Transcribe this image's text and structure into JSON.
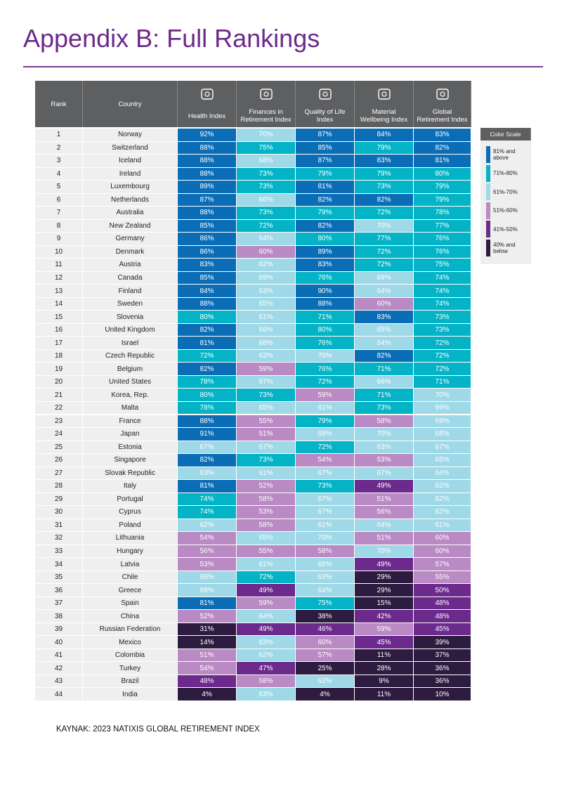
{
  "header": {
    "title": "Appendix B: Full Rankings"
  },
  "table": {
    "columns": [
      "Rank",
      "Country",
      "Health Index",
      "Finances in Retirement Index",
      "Quality of Life Index",
      "Material Wellbeing Index",
      "Global Retirement Index"
    ],
    "rows": [
      [
        "1",
        "Norway",
        "92%",
        "70%",
        "87%",
        "84%",
        "83%"
      ],
      [
        "2",
        "Switzerland",
        "88%",
        "75%",
        "85%",
        "79%",
        "82%"
      ],
      [
        "3",
        "Iceland",
        "88%",
        "68%",
        "87%",
        "83%",
        "81%"
      ],
      [
        "4",
        "Ireland",
        "88%",
        "73%",
        "79%",
        "79%",
        "80%"
      ],
      [
        "5",
        "Luxembourg",
        "89%",
        "73%",
        "81%",
        "73%",
        "79%"
      ],
      [
        "6",
        "Netherlands",
        "87%",
        "66%",
        "82%",
        "82%",
        "79%"
      ],
      [
        "7",
        "Australia",
        "88%",
        "73%",
        "79%",
        "72%",
        "78%"
      ],
      [
        "8",
        "New Zealand",
        "85%",
        "72%",
        "82%",
        "70%",
        "77%"
      ],
      [
        "9",
        "Germany",
        "86%",
        "64%",
        "80%",
        "77%",
        "76%"
      ],
      [
        "10",
        "Denmark",
        "86%",
        "60%",
        "89%",
        "72%",
        "76%"
      ],
      [
        "11",
        "Austria",
        "83%",
        "62%",
        "83%",
        "72%",
        "75%"
      ],
      [
        "12",
        "Canada",
        "85%",
        "69%",
        "76%",
        "69%",
        "74%"
      ],
      [
        "13",
        "Finland",
        "84%",
        "63%",
        "90%",
        "64%",
        "74%"
      ],
      [
        "14",
        "Sweden",
        "88%",
        "65%",
        "88%",
        "60%",
        "74%"
      ],
      [
        "15",
        "Slovenia",
        "80%",
        "61%",
        "71%",
        "83%",
        "73%"
      ],
      [
        "16",
        "United Kingdom",
        "82%",
        "66%",
        "80%",
        "65%",
        "73%"
      ],
      [
        "17",
        "Israel",
        "81%",
        "68%",
        "76%",
        "64%",
        "72%"
      ],
      [
        "18",
        "Czech Republic",
        "72%",
        "63%",
        "70%",
        "82%",
        "72%"
      ],
      [
        "19",
        "Belgium",
        "82%",
        "59%",
        "76%",
        "71%",
        "72%"
      ],
      [
        "20",
        "United States",
        "78%",
        "67%",
        "72%",
        "66%",
        "71%"
      ],
      [
        "21",
        "Korea, Rep.",
        "80%",
        "73%",
        "59%",
        "71%",
        "70%"
      ],
      [
        "22",
        "Malta",
        "78%",
        "65%",
        "61%",
        "73%",
        "69%"
      ],
      [
        "23",
        "France",
        "88%",
        "55%",
        "79%",
        "58%",
        "69%"
      ],
      [
        "24",
        "Japan",
        "91%",
        "51%",
        "69%",
        "70%",
        "68%"
      ],
      [
        "25",
        "Estonia",
        "67%",
        "67%",
        "72%",
        "63%",
        "67%"
      ],
      [
        "26",
        "Singapore",
        "82%",
        "73%",
        "54%",
        "53%",
        "65%"
      ],
      [
        "27",
        "Slovak Republic",
        "63%",
        "61%",
        "67%",
        "67%",
        "64%"
      ],
      [
        "28",
        "Italy",
        "81%",
        "52%",
        "73%",
        "49%",
        "62%"
      ],
      [
        "29",
        "Portugal",
        "74%",
        "58%",
        "67%",
        "51%",
        "62%"
      ],
      [
        "30",
        "Cyprus",
        "74%",
        "53%",
        "67%",
        "56%",
        "62%"
      ],
      [
        "31",
        "Poland",
        "62%",
        "58%",
        "61%",
        "64%",
        "61%"
      ],
      [
        "32",
        "Lithuania",
        "54%",
        "65%",
        "70%",
        "51%",
        "60%"
      ],
      [
        "33",
        "Hungary",
        "56%",
        "55%",
        "58%",
        "70%",
        "60%"
      ],
      [
        "34",
        "Latvia",
        "53%",
        "61%",
        "65%",
        "49%",
        "57%"
      ],
      [
        "35",
        "Chile",
        "66%",
        "72%",
        "63%",
        "29%",
        "55%"
      ],
      [
        "36",
        "Greece",
        "69%",
        "49%",
        "64%",
        "29%",
        "50%"
      ],
      [
        "37",
        "Spain",
        "81%",
        "59%",
        "75%",
        "15%",
        "48%"
      ],
      [
        "38",
        "China",
        "52%",
        "64%",
        "38%",
        "42%",
        "48%"
      ],
      [
        "39",
        "Russian Federation",
        "31%",
        "49%",
        "46%",
        "59%",
        "45%"
      ],
      [
        "40",
        "Mexico",
        "14%",
        "63%",
        "60%",
        "45%",
        "39%"
      ],
      [
        "41",
        "Colombia",
        "51%",
        "62%",
        "57%",
        "11%",
        "37%"
      ],
      [
        "42",
        "Turkey",
        "54%",
        "47%",
        "25%",
        "28%",
        "36%"
      ],
      [
        "43",
        "Brazil",
        "48%",
        "58%",
        "62%",
        "9%",
        "36%"
      ],
      [
        "44",
        "India",
        "4%",
        "63%",
        "4%",
        "11%",
        "10%"
      ]
    ]
  },
  "color_scale": {
    "title": "Color Scale",
    "items": [
      {
        "label": "81% and above",
        "color": "#0b6db5"
      },
      {
        "label": "71%-80%",
        "color": "#05b3c6"
      },
      {
        "label": "61%-70%",
        "color": "#9fd8e7"
      },
      {
        "label": "51%-60%",
        "color": "#b98ac3"
      },
      {
        "label": "41%-50%",
        "color": "#6b2a8c"
      },
      {
        "label": "40% and below",
        "color": "#2e1b40"
      }
    ]
  },
  "footer": {
    "source": "KAYNAK: 2023 NATIXIS GLOBAL RETIREMENT INDEX"
  }
}
